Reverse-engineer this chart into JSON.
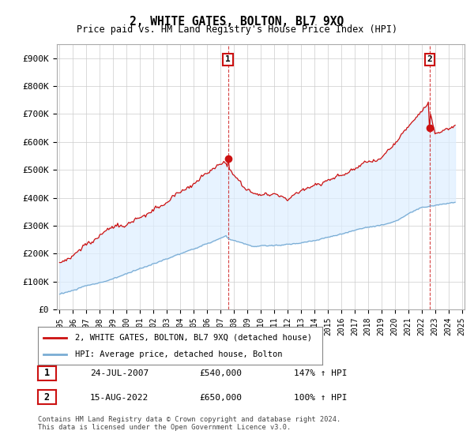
{
  "title": "2, WHITE GATES, BOLTON, BL7 9XQ",
  "subtitle": "Price paid vs. HM Land Registry's House Price Index (HPI)",
  "legend_line1": "2, WHITE GATES, BOLTON, BL7 9XQ (detached house)",
  "legend_line2": "HPI: Average price, detached house, Bolton",
  "sale1_label": "1",
  "sale1_date": "24-JUL-2007",
  "sale1_price": "£540,000",
  "sale1_hpi": "147% ↑ HPI",
  "sale1_year": 2007.56,
  "sale1_value": 540000,
  "sale2_label": "2",
  "sale2_date": "15-AUG-2022",
  "sale2_price": "£650,000",
  "sale2_hpi": "100% ↑ HPI",
  "sale2_year": 2022.62,
  "sale2_value": 650000,
  "hpi_color": "#7aadd4",
  "price_color": "#cc1111",
  "fill_color": "#ddeeff",
  "footnote": "Contains HM Land Registry data © Crown copyright and database right 2024.\nThis data is licensed under the Open Government Licence v3.0.",
  "ylim": [
    0,
    950000
  ],
  "yticks": [
    0,
    100000,
    200000,
    300000,
    400000,
    500000,
    600000,
    700000,
    800000,
    900000
  ],
  "ytick_labels": [
    "£0",
    "£100K",
    "£200K",
    "£300K",
    "£400K",
    "£500K",
    "£600K",
    "£700K",
    "£800K",
    "£900K"
  ],
  "xlim": [
    1994.8,
    2025.2
  ]
}
